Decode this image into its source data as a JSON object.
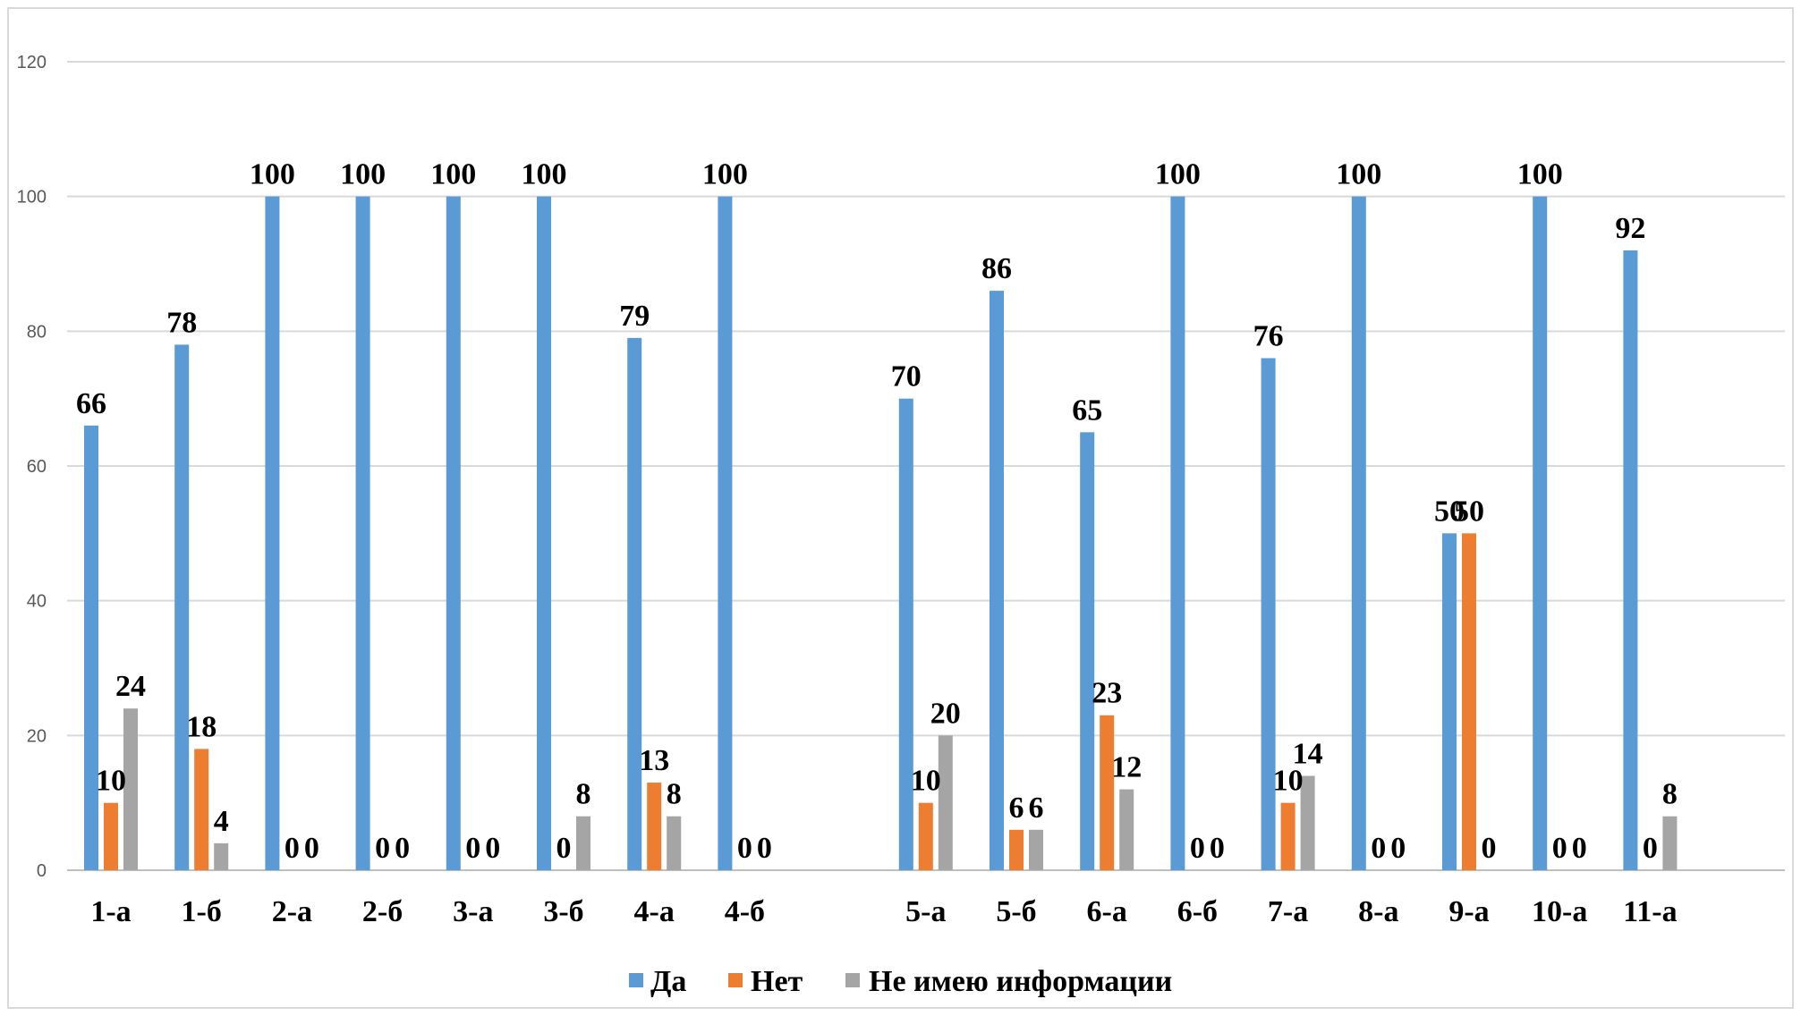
{
  "chart_data": {
    "type": "bar",
    "categories": [
      "1-а",
      "1-б",
      "2-а",
      "2-б",
      "3-а",
      "3-б",
      "4-а",
      "4-б",
      "",
      "5-а",
      "5-б",
      "6-а",
      "6-б",
      "7-а",
      "8-а",
      "9-а",
      "10-а",
      "11-а"
    ],
    "series": [
      {
        "name": "Да",
        "color": "#5B9BD5",
        "values": [
          66,
          78,
          100,
          100,
          100,
          100,
          79,
          100,
          null,
          70,
          86,
          65,
          100,
          76,
          100,
          50,
          100,
          92
        ]
      },
      {
        "name": "Нет",
        "color": "#ED7D31",
        "values": [
          10,
          18,
          0,
          0,
          0,
          0,
          13,
          0,
          null,
          10,
          6,
          23,
          0,
          10,
          0,
          50,
          0,
          0
        ]
      },
      {
        "name": "Не имею информации",
        "color": "#A5A5A5",
        "values": [
          24,
          4,
          0,
          0,
          0,
          8,
          8,
          0,
          null,
          20,
          6,
          12,
          0,
          14,
          0,
          0,
          0,
          8
        ]
      }
    ],
    "y_ticks": [
      "0",
      "20",
      "40",
      "60",
      "80",
      "100",
      "120"
    ],
    "ylim": [
      0,
      120
    ],
    "grid": true,
    "legend": "bottom",
    "data_labels": true
  }
}
